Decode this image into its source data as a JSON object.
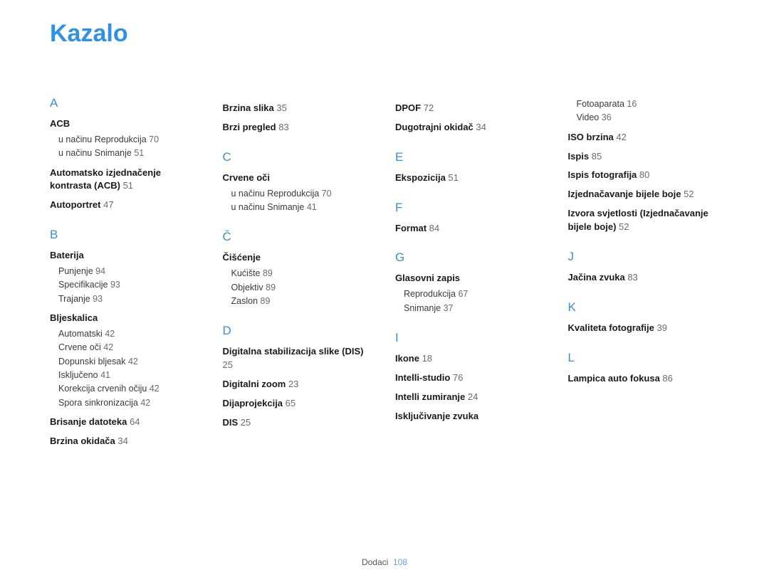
{
  "title": "Kazalo",
  "footer_label": "Dodaci",
  "footer_page": "108",
  "columns": [
    [
      {
        "type": "letter",
        "text": "A"
      },
      {
        "type": "term",
        "text": "ACB"
      },
      {
        "type": "subs",
        "items": [
          {
            "text": "u načinu Reprodukcija",
            "page": "70"
          },
          {
            "text": "u načinu Snimanje",
            "page": "51"
          }
        ]
      },
      {
        "type": "term",
        "text": "Automatsko izjednačenje kontrasta (ACB)",
        "page": "51"
      },
      {
        "type": "term",
        "text": "Autoportret",
        "page": "47"
      },
      {
        "type": "letter",
        "text": "B"
      },
      {
        "type": "term",
        "text": "Baterija"
      },
      {
        "type": "subs",
        "items": [
          {
            "text": "Punjenje",
            "page": "94"
          },
          {
            "text": "Specifikacije",
            "page": "93"
          },
          {
            "text": "Trajanje",
            "page": "93"
          }
        ]
      },
      {
        "type": "term",
        "text": "Bljeskalica"
      },
      {
        "type": "subs",
        "items": [
          {
            "text": "Automatski",
            "page": "42"
          },
          {
            "text": "Crvene oči",
            "page": "42"
          },
          {
            "text": "Dopunski bljesak",
            "page": "42"
          },
          {
            "text": "Isključeno",
            "page": "41"
          },
          {
            "text": "Korekcija crvenih očiju",
            "page": "42"
          },
          {
            "text": "Spora sinkronizacija",
            "page": "42"
          }
        ]
      },
      {
        "type": "term",
        "text": "Brisanje datoteka",
        "page": "64"
      },
      {
        "type": "term",
        "text": "Brzina okidača",
        "page": "34"
      }
    ],
    [
      {
        "type": "term",
        "text": "Brzina slika",
        "page": "35"
      },
      {
        "type": "term",
        "text": "Brzi pregled",
        "page": "83"
      },
      {
        "type": "letter",
        "text": "C"
      },
      {
        "type": "term",
        "text": "Crvene oči"
      },
      {
        "type": "subs",
        "items": [
          {
            "text": "u načinu Reprodukcija",
            "page": "70"
          },
          {
            "text": "u načinu Snimanje",
            "page": "41"
          }
        ]
      },
      {
        "type": "letter",
        "text": "Č"
      },
      {
        "type": "term",
        "text": "Čišćenje"
      },
      {
        "type": "subs",
        "items": [
          {
            "text": "Kućište",
            "page": "89"
          },
          {
            "text": "Objektiv",
            "page": "89"
          },
          {
            "text": "Zaslon",
            "page": "89"
          }
        ]
      },
      {
        "type": "letter",
        "text": "D"
      },
      {
        "type": "term",
        "text": "Digitalna stabilizacija slike (DIS)",
        "page": "25"
      },
      {
        "type": "term",
        "text": "Digitalni zoom",
        "page": "23"
      },
      {
        "type": "term",
        "text": "Dijaprojekcija",
        "page": "65"
      },
      {
        "type": "term",
        "text": "DIS",
        "page": "25"
      }
    ],
    [
      {
        "type": "term",
        "text": "DPOF",
        "page": "72"
      },
      {
        "type": "term",
        "text": "Dugotrajni okidač",
        "page": "34"
      },
      {
        "type": "letter",
        "text": "E"
      },
      {
        "type": "term",
        "text": "Ekspozicija",
        "page": "51"
      },
      {
        "type": "letter",
        "text": "F"
      },
      {
        "type": "term",
        "text": "Format",
        "page": "84"
      },
      {
        "type": "letter",
        "text": "G"
      },
      {
        "type": "term",
        "text": "Glasovni zapis"
      },
      {
        "type": "subs",
        "items": [
          {
            "text": "Reprodukcija",
            "page": "67"
          },
          {
            "text": "Snimanje",
            "page": "37"
          }
        ]
      },
      {
        "type": "letter",
        "text": "I"
      },
      {
        "type": "term",
        "text": "Ikone",
        "page": "18"
      },
      {
        "type": "term",
        "text": "Intelli-studio",
        "page": "76"
      },
      {
        "type": "term",
        "text": "Intelli zumiranje",
        "page": "24"
      },
      {
        "type": "term",
        "text": "Isključivanje zvuka"
      }
    ],
    [
      {
        "type": "subs",
        "items": [
          {
            "text": "Fotoaparata",
            "page": "16"
          },
          {
            "text": "Video",
            "page": "36"
          }
        ]
      },
      {
        "type": "term",
        "text": "ISO brzina",
        "page": "42"
      },
      {
        "type": "term",
        "text": "Ispis",
        "page": "85"
      },
      {
        "type": "term",
        "text": "Ispis fotografija",
        "page": "80"
      },
      {
        "type": "term",
        "text": "Izjednačavanje bijele boje",
        "page": "52"
      },
      {
        "type": "term",
        "text": "Izvora svjetlosti (Izjednačavanje bijele boje)",
        "page": "52"
      },
      {
        "type": "letter",
        "text": "J"
      },
      {
        "type": "term",
        "text": "Jačina zvuka",
        "page": "83"
      },
      {
        "type": "letter",
        "text": "K"
      },
      {
        "type": "term",
        "text": "Kvaliteta fotografije",
        "page": "39"
      },
      {
        "type": "letter",
        "text": "L"
      },
      {
        "type": "term",
        "text": "Lampica auto fokusa",
        "page": "86"
      }
    ]
  ]
}
